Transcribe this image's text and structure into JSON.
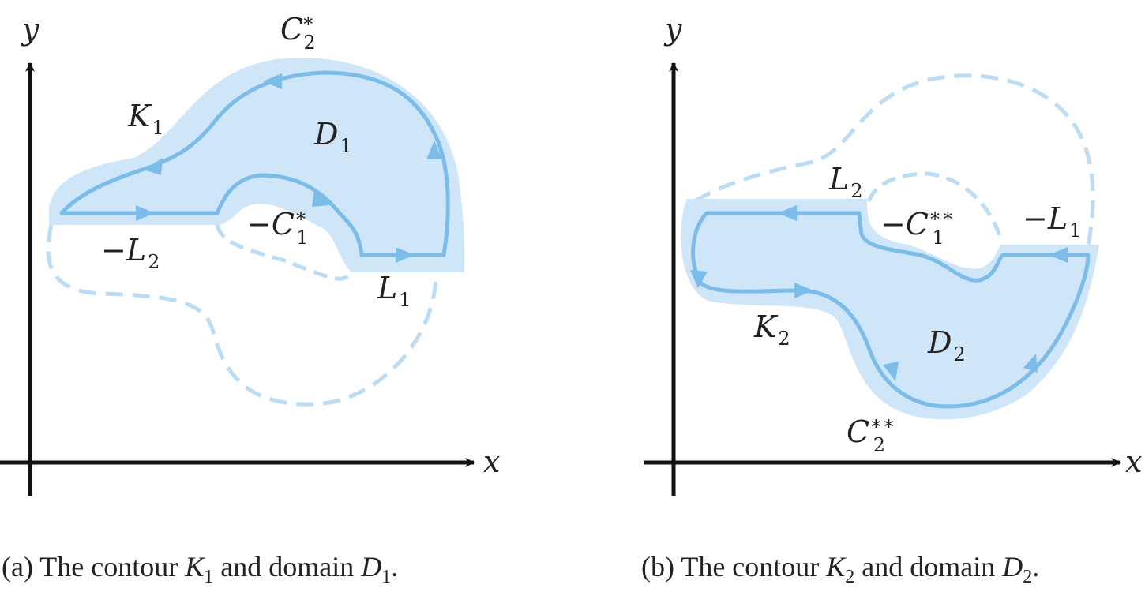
{
  "panel_a": {
    "axis_x": "x",
    "axis_y": "y",
    "labels": {
      "C2_star": {
        "base": "C",
        "sub": "2",
        "sup": "∗"
      },
      "K1": {
        "base": "K",
        "sub": "1"
      },
      "D1": {
        "base": "D",
        "sub": "1"
      },
      "minus_C1_star": {
        "base": "−C",
        "sub": "1",
        "sup": "∗"
      },
      "minus_L2": {
        "base": "−L",
        "sub": "2"
      },
      "L1": {
        "base": "L",
        "sub": "1"
      }
    },
    "caption": {
      "prefix": "(a) The contour ",
      "k": "K",
      "k_sub": "1",
      "middle": " and domain ",
      "d": "D",
      "d_sub": "1",
      "end": "."
    }
  },
  "panel_b": {
    "axis_x": "x",
    "axis_y": "y",
    "labels": {
      "L2": {
        "base": "L",
        "sub": "2"
      },
      "minus_C1_2star": {
        "base": "−C",
        "sub": "1",
        "sup": "∗∗"
      },
      "minus_L1": {
        "base": "−L",
        "sub": "1"
      },
      "K2": {
        "base": "K",
        "sub": "2"
      },
      "D2": {
        "base": "D",
        "sub": "2"
      },
      "C2_2star": {
        "base": "C",
        "sub": "2",
        "sup": "∗∗"
      }
    },
    "caption": {
      "prefix": "(b) The contour ",
      "k": "K",
      "k_sub": "2",
      "middle": " and domain ",
      "d": "D",
      "d_sub": "2",
      "end": "."
    }
  },
  "colors": {
    "fill": "#cfe6f8",
    "contour": "#7bbde8",
    "dashed": "#bcdcf4",
    "axes": "#111111",
    "text": "#222222"
  }
}
